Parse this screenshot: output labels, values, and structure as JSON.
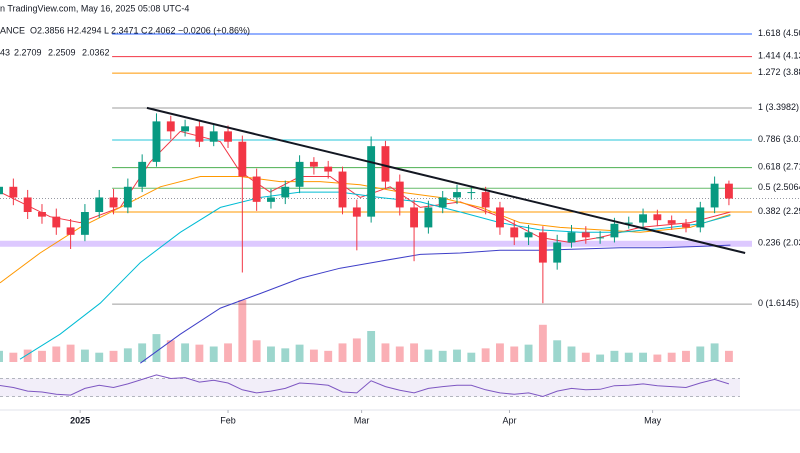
{
  "header": {
    "source": "n TradingView.com, May 16, 2025 05:08 UTC-4",
    "symbol": "ANCE",
    "ohlc": [
      {
        "label": "O",
        "value": 2.3856
      },
      {
        "label": "H",
        "value": 2.4294
      },
      {
        "label": "L",
        "value": 2.3471
      },
      {
        "label": "C",
        "value": 2.4062
      }
    ],
    "change": "−0.0206 (+0.86%)",
    "ma_values": [
      43,
      2.2709,
      2.2509,
      2.0362
    ]
  },
  "chart_data": {
    "type": "candlestick",
    "log_scale": true,
    "xlim": [
      -16.8,
      150.9
    ],
    "ylim": [
      1.52,
      5.12
    ],
    "xticks": [
      {
        "value": 0,
        "label": "2025"
      },
      {
        "value": 31,
        "label": "Feb"
      },
      {
        "value": 59,
        "label": "Mar"
      },
      {
        "value": 90,
        "label": "Apr"
      },
      {
        "value": 120,
        "label": "May"
      }
    ],
    "x": [
      -17,
      -14,
      -11,
      -8,
      -5,
      -2,
      1,
      4,
      7,
      10,
      13,
      16,
      19,
      22,
      25,
      28,
      31,
      34,
      37,
      40,
      43,
      46,
      49,
      52,
      55,
      58,
      61,
      64,
      67,
      70,
      73,
      76,
      79,
      82,
      85,
      88,
      91,
      94,
      97,
      100,
      103,
      106,
      109,
      112,
      115,
      118,
      121,
      124,
      127,
      130,
      133,
      136
    ],
    "open": [
      2.45,
      2.52,
      2.42,
      2.29,
      2.25,
      2.16,
      2.1,
      2.29,
      2.42,
      2.33,
      2.52,
      2.77,
      3.23,
      3.11,
      3.17,
      2.99,
      3.11,
      2.99,
      2.62,
      2.38,
      2.42,
      2.52,
      2.77,
      2.72,
      2.67,
      2.33,
      2.25,
      2.94,
      2.57,
      2.33,
      2.16,
      2.33,
      2.42,
      2.47,
      2.47,
      2.33,
      2.16,
      2.08,
      2.12,
      1.89,
      2.04,
      2.12,
      2.08,
      2.08,
      2.19,
      2.2,
      2.27,
      2.22,
      2.19,
      2.16,
      2.33,
      2.55
    ],
    "high": [
      2.6,
      2.6,
      2.49,
      2.36,
      2.32,
      2.23,
      2.36,
      2.49,
      2.5,
      2.6,
      2.85,
      3.33,
      3.3,
      3.25,
      3.24,
      3.2,
      3.18,
      3.06,
      2.7,
      2.5,
      2.58,
      2.84,
      2.82,
      2.78,
      2.72,
      2.4,
      3.05,
      3.0,
      2.64,
      2.4,
      2.39,
      2.48,
      2.54,
      2.53,
      2.52,
      2.38,
      2.22,
      2.18,
      2.17,
      2.1,
      2.18,
      2.17,
      2.13,
      2.24,
      2.25,
      2.32,
      2.31,
      2.26,
      2.23,
      2.38,
      2.62,
      2.58
    ],
    "low": [
      2.38,
      2.35,
      2.23,
      2.19,
      2.1,
      1.99,
      2.05,
      2.24,
      2.27,
      2.28,
      2.47,
      2.72,
      3.02,
      3.05,
      2.93,
      2.94,
      2.92,
      1.82,
      2.3,
      2.32,
      2.36,
      2.46,
      2.64,
      2.6,
      2.27,
      1.98,
      2.2,
      2.5,
      2.26,
      1.9,
      2.11,
      2.28,
      2.36,
      2.4,
      2.27,
      2.1,
      2.02,
      2.02,
      1.62,
      1.84,
      2.0,
      2.03,
      2.03,
      2.04,
      2.15,
      2.16,
      2.17,
      2.14,
      2.12,
      2.12,
      2.28,
      2.35
    ],
    "close": [
      2.52,
      2.42,
      2.29,
      2.25,
      2.16,
      2.1,
      2.29,
      2.42,
      2.33,
      2.52,
      2.77,
      3.23,
      3.11,
      3.17,
      2.99,
      3.11,
      2.99,
      2.62,
      2.38,
      2.42,
      2.52,
      2.77,
      2.72,
      2.67,
      2.33,
      2.25,
      2.94,
      2.57,
      2.33,
      2.16,
      2.33,
      2.42,
      2.47,
      2.47,
      2.33,
      2.16,
      2.08,
      2.12,
      1.89,
      2.04,
      2.12,
      2.08,
      2.08,
      2.19,
      2.2,
      2.27,
      2.22,
      2.19,
      2.16,
      2.33,
      2.55,
      2.41
    ],
    "up_color": "#089981",
    "down_color": "#f23645",
    "volume": [
      18,
      15,
      20,
      18,
      25,
      28,
      20,
      15,
      18,
      22,
      30,
      45,
      35,
      30,
      28,
      25,
      30,
      100,
      35,
      25,
      22,
      28,
      20,
      18,
      30,
      38,
      50,
      30,
      25,
      30,
      20,
      18,
      20,
      15,
      22,
      30,
      25,
      28,
      60,
      35,
      25,
      15,
      12,
      18,
      15,
      15,
      12,
      15,
      18,
      25,
      30,
      18
    ],
    "volume_ylim": [
      0,
      100
    ],
    "rsi": [
      55,
      50,
      42,
      40,
      35,
      33,
      48,
      55,
      50,
      58,
      68,
      78,
      70,
      72,
      62,
      66,
      60,
      45,
      38,
      42,
      48,
      60,
      58,
      55,
      40,
      38,
      65,
      52,
      44,
      38,
      48,
      52,
      55,
      55,
      45,
      38,
      35,
      38,
      30,
      42,
      48,
      45,
      46,
      54,
      55,
      58,
      54,
      52,
      50,
      60,
      68,
      58
    ],
    "rsi_ylim": [
      0,
      100
    ],
    "rsi_levels": [
      70,
      30
    ],
    "rsi_color": "#7e57c2",
    "ma_series": [
      {
        "color": "#f23645",
        "x": [
          -16.8,
          -6.3,
          0,
          8.4,
          14.7,
          21,
          29.4,
          33.5,
          39.8,
          46.1,
          52.4,
          58.7,
          65,
          71.3,
          79.7,
          88,
          96.4,
          102.7,
          109,
          117.4,
          127.9,
          136.3
        ],
        "values": [
          2.47,
          2.25,
          2.2,
          2.33,
          2.77,
          3.11,
          2.99,
          2.67,
          2.47,
          2.62,
          2.62,
          2.42,
          2.52,
          2.33,
          2.38,
          2.25,
          2.08,
          2.04,
          2.08,
          2.16,
          2.2,
          2.29
        ]
      },
      {
        "color": "#ff9800",
        "x": [
          -16.8,
          -8.4,
          0,
          8.4,
          16.8,
          25.2,
          33.5,
          41.9,
          50.3,
          58.7,
          67.1,
          75.5,
          83.9,
          92.2,
          100.6,
          109,
          117.4,
          127.9,
          136.3
        ],
        "values": [
          1.75,
          1.96,
          2.16,
          2.33,
          2.52,
          2.62,
          2.62,
          2.57,
          2.57,
          2.54,
          2.47,
          2.42,
          2.33,
          2.2,
          2.16,
          2.14,
          2.12,
          2.16,
          2.27
        ]
      },
      {
        "color": "#00bcd4",
        "x": [
          -12.6,
          -4.2,
          4.2,
          12.6,
          21,
          29.4,
          37.7,
          46.1,
          54.5,
          62.9,
          71.3,
          79.7,
          88,
          96.4,
          104.8,
          113.2,
          121.6,
          130,
          136.3
        ],
        "values": [
          1.31,
          1.44,
          1.62,
          1.89,
          2.12,
          2.33,
          2.42,
          2.47,
          2.47,
          2.42,
          2.38,
          2.29,
          2.2,
          2.14,
          2.12,
          2.12,
          2.15,
          2.19,
          2.26
        ]
      },
      {
        "color": "#3f3fc8",
        "x": [
          12.6,
          21,
          29.4,
          37.7,
          46.1,
          54.5,
          62.9,
          71.3,
          79.7,
          88,
          96.4,
          104.8,
          113.2,
          121.6,
          130,
          136.3
        ],
        "values": [
          1.29,
          1.44,
          1.59,
          1.68,
          1.78,
          1.85,
          1.9,
          1.95,
          1.96,
          1.98,
          1.98,
          1.99,
          2.0,
          2.0,
          2.01,
          2.02
        ]
      }
    ],
    "trendline": {
      "x": [
        14,
        139.4
      ],
      "values": [
        3.4,
        1.96
      ],
      "color": "#131722"
    },
    "fib": {
      "start": 6.7,
      "levels": [
        {
          "label": "1.618 (4.50",
          "price": 4.5,
          "color": "#2962ff"
        },
        {
          "label": "1.414 (4.13",
          "price": 4.13,
          "color": "#f23645"
        },
        {
          "label": "1.272 (3.88",
          "price": 3.88,
          "color": "#ff9800"
        },
        {
          "label": "1 (3.3982)",
          "price": 3.3982,
          "color": "#9e9e9e"
        },
        {
          "label": "0.786 (3.01",
          "price": 3.01,
          "color": "#26c6da"
        },
        {
          "label": "0.618 (2.71",
          "price": 2.71,
          "color": "#4caf50"
        },
        {
          "label": "0.5 (2.5064",
          "price": 2.5064,
          "color": "#66bb6a"
        },
        {
          "label": "0.382 (2.29",
          "price": 2.29,
          "color": "#ff9800"
        },
        {
          "label": "0.236 (2.03",
          "price": 2.03,
          "color": "#b388ff"
        },
        {
          "label": "0 (1.6145)",
          "price": 1.6145,
          "color": "#9e9e9e"
        }
      ]
    }
  }
}
